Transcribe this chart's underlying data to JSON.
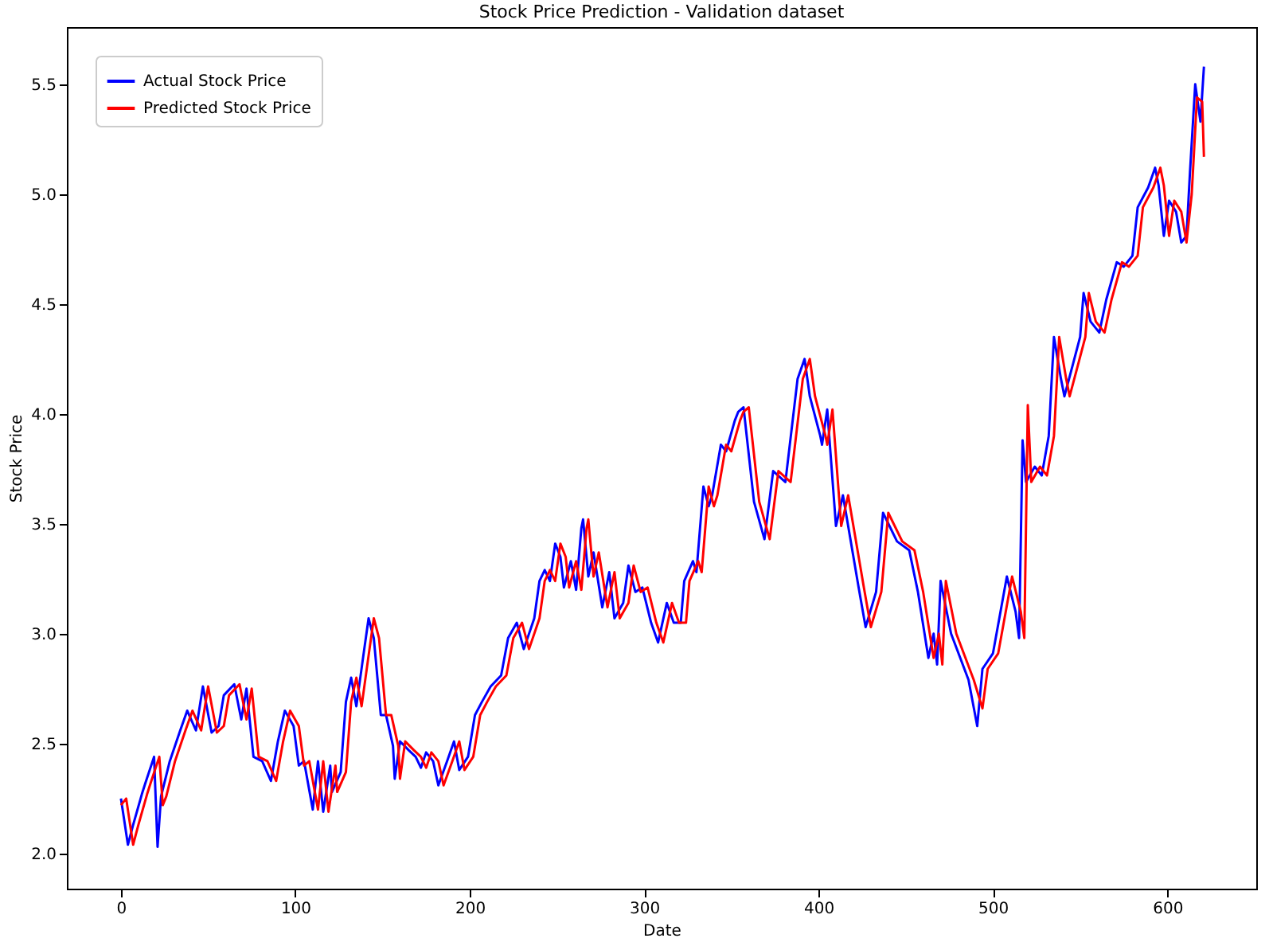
{
  "chart_data": {
    "type": "line",
    "title": "Stock Price Prediction - Validation dataset",
    "xlabel": "Date",
    "ylabel": "Stock Price",
    "series": [
      {
        "name": "Actual Stock Price",
        "color": "#0000ff",
        "x": [
          0,
          4,
          7,
          12,
          14,
          19,
          21,
          23,
          28,
          34,
          38,
          43,
          47,
          52,
          56,
          59,
          65,
          69,
          72,
          76,
          81,
          86,
          90,
          94,
          99,
          102,
          105,
          110,
          113,
          116,
          120,
          121,
          126,
          129,
          132,
          135,
          139,
          142,
          145,
          149,
          152,
          156,
          157,
          160,
          165,
          169,
          172,
          175,
          179,
          182,
          187,
          191,
          194,
          199,
          203,
          207,
          212,
          218,
          222,
          227,
          231,
          237,
          240,
          243,
          246,
          249,
          252,
          254,
          258,
          261,
          264,
          265,
          268,
          271,
          276,
          280,
          283,
          288,
          291,
          295,
          299,
          304,
          308,
          313,
          317,
          321,
          323,
          328,
          330,
          334,
          337,
          339,
          344,
          347,
          352,
          354,
          357,
          363,
          369,
          374,
          381,
          388,
          392,
          395,
          401,
          402,
          405,
          410,
          414,
          423,
          427,
          433,
          437,
          445,
          452,
          457,
          463,
          466,
          468,
          470,
          476,
          486,
          491,
          494,
          500,
          508,
          513,
          515,
          517,
          519,
          524,
          528,
          532,
          535,
          539,
          541,
          546,
          550,
          552,
          556,
          561,
          565,
          571,
          575,
          580,
          583,
          589,
          593,
          595,
          598,
          601,
          605,
          608,
          611,
          613,
          616,
          619,
          621
        ],
        "values": [
          2.25,
          2.04,
          2.13,
          2.27,
          2.32,
          2.44,
          2.03,
          2.26,
          2.42,
          2.56,
          2.65,
          2.56,
          2.76,
          2.55,
          2.58,
          2.72,
          2.77,
          2.61,
          2.75,
          2.44,
          2.42,
          2.33,
          2.51,
          2.65,
          2.58,
          2.4,
          2.42,
          2.2,
          2.42,
          2.19,
          2.4,
          2.28,
          2.37,
          2.69,
          2.8,
          2.67,
          2.9,
          3.07,
          2.98,
          2.63,
          2.63,
          2.49,
          2.34,
          2.51,
          2.47,
          2.44,
          2.39,
          2.46,
          2.42,
          2.31,
          2.42,
          2.51,
          2.38,
          2.44,
          2.63,
          2.69,
          2.76,
          2.81,
          2.98,
          3.05,
          2.93,
          3.07,
          3.24,
          3.29,
          3.24,
          3.41,
          3.35,
          3.21,
          3.33,
          3.2,
          3.48,
          3.52,
          3.26,
          3.37,
          3.12,
          3.28,
          3.07,
          3.14,
          3.31,
          3.19,
          3.21,
          3.05,
          2.96,
          3.14,
          3.05,
          3.05,
          3.24,
          3.33,
          3.28,
          3.67,
          3.58,
          3.63,
          3.86,
          3.83,
          3.97,
          4.01,
          4.03,
          3.6,
          3.43,
          3.74,
          3.69,
          4.16,
          4.25,
          4.08,
          3.9,
          3.86,
          4.02,
          3.49,
          3.63,
          3.21,
          3.03,
          3.19,
          3.55,
          3.42,
          3.38,
          3.19,
          2.89,
          3.0,
          2.86,
          3.24,
          3.0,
          2.79,
          2.58,
          2.84,
          2.91,
          3.26,
          3.1,
          2.98,
          3.88,
          3.69,
          3.76,
          3.72,
          3.9,
          4.35,
          4.16,
          4.08,
          4.23,
          4.35,
          4.55,
          4.42,
          4.37,
          4.52,
          4.69,
          4.67,
          4.72,
          4.94,
          5.03,
          5.12,
          5.04,
          4.81,
          4.97,
          4.92,
          4.78,
          4.81,
          5.1,
          5.5,
          5.33,
          5.58
        ]
      },
      {
        "name": "Predicted Stock Price",
        "color": "#ff0000",
        "x": [
          0,
          3,
          7,
          10,
          15,
          17,
          22,
          24,
          26,
          31,
          37,
          41,
          46,
          50,
          55,
          59,
          62,
          68,
          72,
          75,
          79,
          84,
          89,
          93,
          97,
          102,
          105,
          108,
          113,
          116,
          119,
          123,
          124,
          129,
          132,
          135,
          138,
          142,
          145,
          148,
          152,
          155,
          159,
          160,
          163,
          168,
          172,
          175,
          178,
          182,
          185,
          190,
          194,
          197,
          202,
          206,
          210,
          215,
          221,
          225,
          230,
          234,
          240,
          243,
          246,
          249,
          252,
          255,
          257,
          261,
          264,
          267,
          268,
          271,
          274,
          279,
          283,
          286,
          291,
          294,
          298,
          302,
          307,
          311,
          316,
          320,
          324,
          326,
          331,
          333,
          337,
          340,
          342,
          347,
          350,
          355,
          357,
          360,
          366,
          372,
          377,
          384,
          391,
          395,
          398,
          404,
          405,
          408,
          413,
          417,
          426,
          430,
          436,
          440,
          448,
          455,
          460,
          466,
          469,
          471,
          473,
          479,
          489,
          494,
          497,
          503,
          511,
          516,
          518,
          520,
          522,
          527,
          531,
          535,
          538,
          542,
          544,
          549,
          553,
          555,
          559,
          564,
          568,
          574,
          578,
          583,
          586,
          592,
          596,
          598,
          601,
          604,
          608,
          611,
          614,
          617,
          620,
          621
        ],
        "values": [
          2.22,
          2.25,
          2.04,
          2.13,
          2.27,
          2.32,
          2.44,
          2.22,
          2.26,
          2.42,
          2.56,
          2.65,
          2.56,
          2.76,
          2.55,
          2.58,
          2.72,
          2.77,
          2.61,
          2.75,
          2.44,
          2.42,
          2.33,
          2.51,
          2.65,
          2.58,
          2.4,
          2.42,
          2.2,
          2.42,
          2.19,
          2.4,
          2.28,
          2.37,
          2.69,
          2.8,
          2.67,
          2.9,
          3.07,
          2.98,
          2.63,
          2.63,
          2.49,
          2.34,
          2.51,
          2.47,
          2.44,
          2.39,
          2.46,
          2.42,
          2.31,
          2.42,
          2.51,
          2.38,
          2.44,
          2.63,
          2.69,
          2.76,
          2.81,
          2.98,
          3.05,
          2.93,
          3.07,
          3.24,
          3.29,
          3.24,
          3.41,
          3.35,
          3.21,
          3.33,
          3.2,
          3.48,
          3.52,
          3.26,
          3.37,
          3.12,
          3.28,
          3.07,
          3.14,
          3.31,
          3.19,
          3.21,
          3.05,
          2.96,
          3.14,
          3.05,
          3.05,
          3.24,
          3.33,
          3.28,
          3.67,
          3.58,
          3.63,
          3.86,
          3.83,
          3.97,
          4.01,
          4.03,
          3.6,
          3.43,
          3.74,
          3.69,
          4.16,
          4.25,
          4.08,
          3.9,
          3.86,
          4.02,
          3.49,
          3.63,
          3.21,
          3.03,
          3.19,
          3.55,
          3.42,
          3.38,
          3.19,
          2.89,
          3.0,
          2.86,
          3.24,
          3.0,
          2.79,
          2.66,
          2.84,
          2.91,
          3.26,
          3.1,
          2.98,
          4.04,
          3.69,
          3.76,
          3.72,
          3.9,
          4.35,
          4.16,
          4.08,
          4.23,
          4.35,
          4.55,
          4.42,
          4.37,
          4.52,
          4.69,
          4.67,
          4.72,
          4.94,
          5.03,
          5.12,
          5.04,
          4.81,
          4.97,
          4.92,
          4.78,
          5.0,
          5.44,
          5.42,
          5.17
        ]
      }
    ],
    "xlim": [
      -31,
      651
    ],
    "xticks": [
      0,
      100,
      200,
      300,
      400,
      500,
      600
    ],
    "ylim": [
      1.84,
      5.76
    ],
    "yticks": [
      {
        "value": 2,
        "label": "2.0"
      },
      2.5,
      {
        "value": 3,
        "label": "3.0"
      },
      3.5,
      {
        "value": 4,
        "label": "4.0"
      },
      4.5,
      {
        "value": 5,
        "label": "5.0"
      },
      5.5
    ],
    "grid": false,
    "legend": "top left",
    "line_style": "solid"
  }
}
